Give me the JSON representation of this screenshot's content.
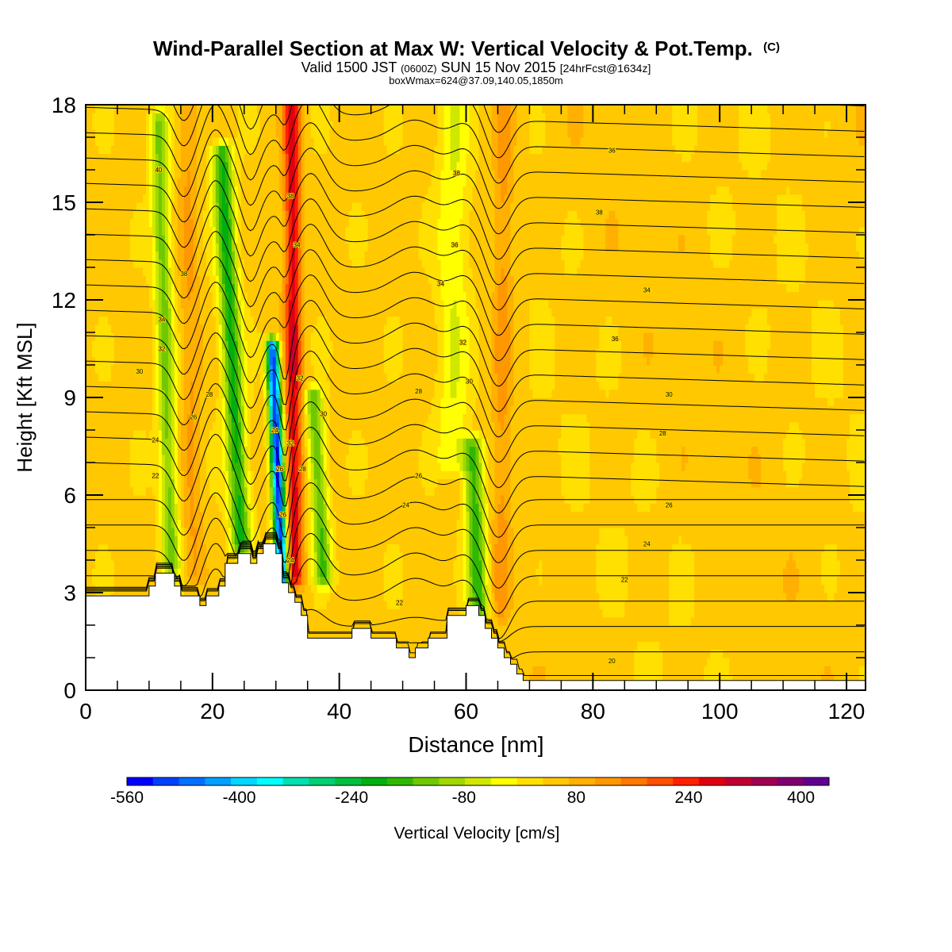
{
  "chart_data": {
    "type": "heatmap",
    "title": "Wind-Parallel Section at Max W: Vertical Velocity & Pot.Temp.",
    "title_mark": "(C)",
    "subtitle_parts": [
      "Valid 1500 JST",
      "(0600Z)",
      "SUN 15 Nov 2015",
      "[24hrFcst@1634z]"
    ],
    "subtitle2": "boxWmax=624@37.09,140.05,1850m",
    "xlabel": "Distance [nm]",
    "ylabel": "Height [Kft MSL]",
    "xlim": [
      0,
      123
    ],
    "ylim": [
      0,
      18
    ],
    "x_ticks": [
      0,
      20,
      40,
      60,
      80,
      100,
      120
    ],
    "y_ticks": [
      0,
      3,
      6,
      9,
      12,
      15,
      18
    ],
    "x_minor_step": 5,
    "y_minor_step": 1,
    "colorbar": {
      "label": "Vertical Velocity [cm/s]",
      "range": [
        -560,
        440
      ],
      "tick_values": [
        -560,
        -400,
        -240,
        -80,
        80,
        240,
        400
      ],
      "colors": [
        "#0000ff",
        "#0040ff",
        "#0070ff",
        "#00a0ff",
        "#00d8ff",
        "#00ffff",
        "#00e0b0",
        "#00d070",
        "#00c040",
        "#00b010",
        "#30b800",
        "#70c800",
        "#a0d800",
        "#d0e800",
        "#ffff00",
        "#ffe000",
        "#ffc800",
        "#ffb000",
        "#ff9800",
        "#ff7800",
        "#ff5000",
        "#ff2000",
        "#e00010",
        "#c00030",
        "#a00050",
        "#800070",
        "#600090"
      ]
    },
    "velocity_features": [
      {
        "x": 13.5,
        "x_top": 11.5,
        "halfwidth": 1.4,
        "y_bottom": 3.8,
        "y_top": 17.5,
        "value": -130
      },
      {
        "x": 17,
        "x_top": 16,
        "halfwidth": 1.5,
        "y_bottom": 3.6,
        "y_top": 18,
        "value": 110
      },
      {
        "x": 24.5,
        "x_top": 21.5,
        "halfwidth": 1.6,
        "y_bottom": 4.5,
        "y_top": 16.5,
        "value": -200
      },
      {
        "x": 33,
        "x_top": 32.5,
        "halfwidth": 1.3,
        "y_bottom": 3.5,
        "y_top": 18,
        "value": 280
      },
      {
        "x": 31,
        "x_top": 29.5,
        "halfwidth": 1.0,
        "y_bottom": 3.3,
        "y_top": 10.5,
        "value": -520
      },
      {
        "x": 37.5,
        "x_top": 36,
        "halfwidth": 1.4,
        "y_bottom": 3.5,
        "y_top": 9,
        "value": -150
      },
      {
        "x": 62,
        "x_top": 61,
        "halfwidth": 1.6,
        "y_bottom": 2.5,
        "y_top": 7.5,
        "value": -170
      },
      {
        "x": 65.5,
        "x_top": 66,
        "halfwidth": 1.5,
        "y_bottom": 2.5,
        "y_top": 18,
        "value": 120
      },
      {
        "x": 58,
        "x_top": 58,
        "halfwidth": 2.5,
        "y_bottom": 7,
        "y_top": 18,
        "value": -40
      }
    ],
    "terrain": {
      "x": [
        0,
        10,
        10,
        11,
        11,
        14,
        14,
        15,
        15,
        18,
        18,
        19,
        19,
        21,
        21,
        22,
        22,
        24,
        24,
        26,
        26,
        27,
        27,
        28,
        28,
        30,
        30,
        31,
        31,
        32,
        32,
        33,
        33,
        34,
        34,
        35,
        35,
        42,
        42,
        45,
        45,
        49,
        49,
        51,
        51,
        52,
        52,
        54,
        54,
        57,
        57,
        60,
        60,
        62,
        62,
        63,
        63,
        64,
        64,
        65,
        65,
        66,
        66,
        67,
        67,
        68,
        68,
        69,
        69,
        123
      ],
      "y": [
        2.9,
        2.9,
        3.2,
        3.2,
        3.6,
        3.6,
        3.2,
        3.2,
        2.9,
        2.9,
        2.6,
        2.6,
        2.9,
        2.9,
        3.2,
        3.2,
        3.9,
        3.9,
        4.2,
        4.2,
        3.9,
        3.9,
        4.2,
        4.2,
        4.5,
        4.5,
        4.2,
        4.2,
        3.3,
        3.3,
        3.0,
        3.0,
        2.7,
        2.7,
        2.3,
        2.3,
        1.6,
        1.6,
        1.9,
        1.9,
        1.6,
        1.6,
        1.3,
        1.3,
        1.0,
        1.0,
        1.3,
        1.3,
        1.6,
        1.6,
        2.3,
        2.3,
        2.6,
        2.6,
        2.3,
        2.3,
        1.9,
        1.9,
        1.6,
        1.6,
        1.3,
        1.3,
        1.0,
        1.0,
        0.8,
        0.8,
        0.5,
        0.5,
        0.3,
        0.3
      ]
    },
    "theta_labels": [
      {
        "x": 11.5,
        "y": 16.0,
        "text": "40"
      },
      {
        "x": 15.5,
        "y": 12.8,
        "text": "38"
      },
      {
        "x": 12,
        "y": 11.4,
        "text": "34"
      },
      {
        "x": 12,
        "y": 10.5,
        "text": "32"
      },
      {
        "x": 8.5,
        "y": 9.8,
        "text": "30"
      },
      {
        "x": 19.5,
        "y": 9.1,
        "text": "28"
      },
      {
        "x": 17,
        "y": 8.4,
        "text": "26"
      },
      {
        "x": 11,
        "y": 7.7,
        "text": "24"
      },
      {
        "x": 11,
        "y": 6.6,
        "text": "22"
      },
      {
        "x": 32.3,
        "y": 15.2,
        "text": "38"
      },
      {
        "x": 33.3,
        "y": 13.7,
        "text": "34"
      },
      {
        "x": 33.8,
        "y": 9.6,
        "text": "32"
      },
      {
        "x": 29.8,
        "y": 8.0,
        "text": "24"
      },
      {
        "x": 32.3,
        "y": 7.6,
        "text": "32"
      },
      {
        "x": 30.6,
        "y": 6.8,
        "text": "26"
      },
      {
        "x": 34.2,
        "y": 6.8,
        "text": "28"
      },
      {
        "x": 31.1,
        "y": 5.4,
        "text": "26"
      },
      {
        "x": 32.3,
        "y": 4.0,
        "text": "24"
      },
      {
        "x": 37.5,
        "y": 8.5,
        "text": "30"
      },
      {
        "x": 58.5,
        "y": 15.9,
        "text": "38"
      },
      {
        "x": 58.2,
        "y": 13.7,
        "text": "36"
      },
      {
        "x": 56,
        "y": 12.5,
        "text": "34"
      },
      {
        "x": 59.5,
        "y": 10.7,
        "text": "32"
      },
      {
        "x": 60.5,
        "y": 9.5,
        "text": "30"
      },
      {
        "x": 52.5,
        "y": 9.2,
        "text": "28"
      },
      {
        "x": 52.5,
        "y": 6.6,
        "text": "26"
      },
      {
        "x": 50.5,
        "y": 5.7,
        "text": "24"
      },
      {
        "x": 49.5,
        "y": 2.7,
        "text": "22"
      },
      {
        "x": 83,
        "y": 16.6,
        "text": "36"
      },
      {
        "x": 81,
        "y": 14.7,
        "text": "38"
      },
      {
        "x": 88.5,
        "y": 12.3,
        "text": "34"
      },
      {
        "x": 83.5,
        "y": 10.8,
        "text": "36"
      },
      {
        "x": 92,
        "y": 9.1,
        "text": "30"
      },
      {
        "x": 91,
        "y": 7.9,
        "text": "28"
      },
      {
        "x": 92,
        "y": 5.7,
        "text": "26"
      },
      {
        "x": 88.5,
        "y": 4.5,
        "text": "24"
      },
      {
        "x": 85,
        "y": 3.4,
        "text": "22"
      },
      {
        "x": 83,
        "y": 0.9,
        "text": "20"
      }
    ]
  }
}
